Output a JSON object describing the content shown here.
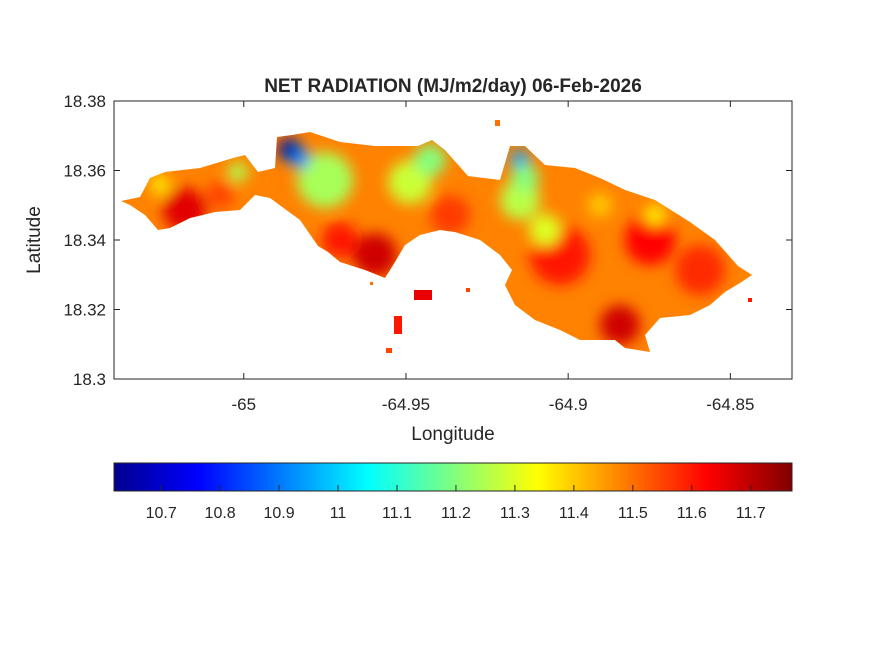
{
  "chart_data": {
    "type": "heatmap",
    "title": "NET RADIATION (MJ/m2/day) 06-Feb-2026",
    "xlabel": "Longitude",
    "ylabel": "Latitude",
    "xlim": [
      -65.04,
      -64.831
    ],
    "ylim": [
      18.3,
      18.38
    ],
    "xticks": [
      -65,
      -64.95,
      -64.9,
      -64.85
    ],
    "xtick_labels": [
      "-65",
      "-64.95",
      "-64.9",
      "-64.85"
    ],
    "yticks": [
      18.3,
      18.32,
      18.34,
      18.36,
      18.38
    ],
    "ytick_labels": [
      "18.3",
      "18.32",
      "18.34",
      "18.36",
      "18.38"
    ],
    "grid": false,
    "colormap": "jet",
    "colorbar": {
      "location": "bottom",
      "range": [
        10.62,
        11.77
      ],
      "ticks": [
        10.7,
        10.8,
        10.9,
        11,
        11.1,
        11.2,
        11.3,
        11.4,
        11.5,
        11.6,
        11.7
      ],
      "tick_labels": [
        "10.7",
        "10.8",
        "10.9",
        "11",
        "11.1",
        "11.2",
        "11.3",
        "11.4",
        "11.5",
        "11.6",
        "11.7"
      ]
    },
    "value_range_on_map": [
      10.65,
      11.75
    ]
  }
}
